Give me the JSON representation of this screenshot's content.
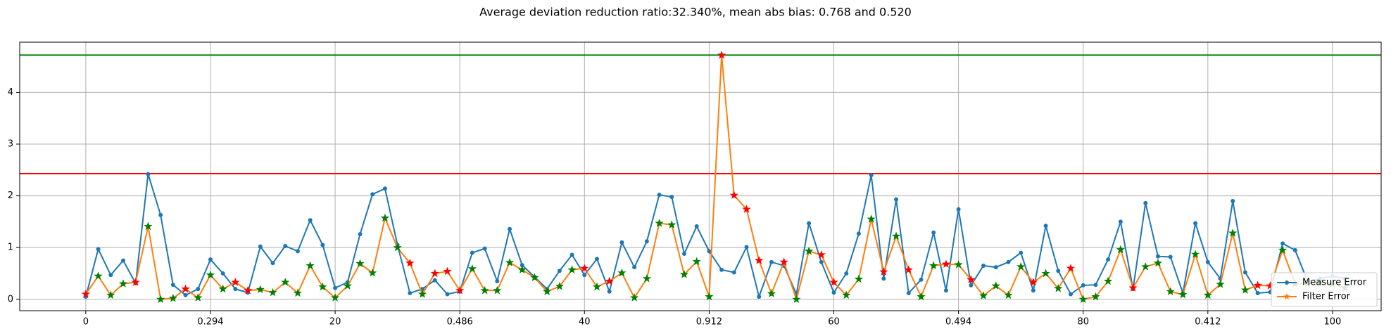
{
  "chart_data": {
    "type": "line",
    "title": "Average deviation reduction ratio:32.340%, mean abs bias: 0.768 and 0.520",
    "x": [
      0,
      1,
      2,
      3,
      4,
      5,
      6,
      7,
      8,
      9,
      10,
      11,
      12,
      13,
      14,
      15,
      16,
      17,
      18,
      19,
      20,
      21,
      22,
      23,
      24,
      25,
      26,
      27,
      28,
      29,
      30,
      31,
      32,
      33,
      34,
      35,
      36,
      37,
      38,
      39,
      40,
      41,
      42,
      43,
      44,
      45,
      46,
      47,
      48,
      49,
      50,
      51,
      52,
      53,
      54,
      55,
      56,
      57,
      58,
      59,
      60,
      61,
      62,
      63,
      64,
      65,
      66,
      67,
      68,
      69,
      70,
      71,
      72,
      73,
      74,
      75,
      76,
      77,
      78,
      79,
      80,
      81,
      82,
      83,
      84,
      85,
      86,
      87,
      88,
      89,
      90,
      91,
      92,
      93,
      94,
      95,
      96,
      97,
      98,
      99,
      100,
      101
    ],
    "series": [
      {
        "name": "Measure Error",
        "color": "#1f77b4",
        "marker": "dot",
        "values": [
          0.05,
          0.97,
          0.47,
          0.75,
          0.31,
          2.42,
          1.63,
          0.28,
          0.08,
          0.2,
          0.77,
          0.5,
          0.2,
          0.13,
          1.02,
          0.7,
          1.03,
          0.93,
          1.53,
          1.05,
          0.22,
          0.33,
          1.26,
          2.03,
          2.14,
          1.05,
          0.12,
          0.2,
          0.37,
          0.1,
          0.15,
          0.9,
          0.98,
          0.35,
          1.36,
          0.66,
          0.43,
          0.2,
          0.55,
          0.86,
          0.47,
          0.78,
          0.15,
          1.1,
          0.62,
          1.12,
          2.02,
          1.98,
          0.88,
          1.41,
          0.93,
          0.57,
          0.52,
          1.01,
          0.05,
          0.72,
          0.65,
          0.1,
          1.47,
          0.72,
          0.13,
          0.5,
          1.27,
          2.4,
          0.4,
          1.93,
          0.12,
          0.38,
          1.29,
          0.17,
          1.74,
          0.27,
          0.65,
          0.62,
          0.72,
          0.9,
          0.17,
          1.42,
          0.55,
          0.1,
          0.27,
          0.28,
          0.77,
          1.5,
          0.2,
          1.86,
          0.83,
          0.82,
          0.12,
          1.47,
          0.72,
          0.4,
          1.9,
          0.52,
          0.12,
          0.14,
          1.08,
          0.95,
          0.35,
          0.4,
          0.45,
          0.4
        ]
      },
      {
        "name": "Filter Error",
        "color": "#ff7f0e",
        "marker": "star",
        "values": [
          0.1,
          0.45,
          0.08,
          0.3,
          0.33,
          1.41,
          0.0,
          0.02,
          0.2,
          0.03,
          0.47,
          0.2,
          0.33,
          0.17,
          0.19,
          0.13,
          0.33,
          0.12,
          0.65,
          0.24,
          0.03,
          0.26,
          0.69,
          0.51,
          1.57,
          1.0,
          0.7,
          0.1,
          0.5,
          0.54,
          0.17,
          0.59,
          0.17,
          0.17,
          0.71,
          0.57,
          0.42,
          0.15,
          0.25,
          0.57,
          0.6,
          0.24,
          0.35,
          0.51,
          0.03,
          0.4,
          1.47,
          1.44,
          0.48,
          0.73,
          0.05,
          4.72,
          2.01,
          1.74,
          0.75,
          0.11,
          0.72,
          0.0,
          0.93,
          0.86,
          0.33,
          0.08,
          0.39,
          1.55,
          0.53,
          1.22,
          0.57,
          0.05,
          0.65,
          0.68,
          0.67,
          0.38,
          0.07,
          0.26,
          0.08,
          0.63,
          0.33,
          0.5,
          0.21,
          0.6,
          0.0,
          0.05,
          0.35,
          0.96,
          0.22,
          0.63,
          0.7,
          0.15,
          0.09,
          0.87,
          0.08,
          0.29,
          1.28,
          0.18,
          0.27,
          0.26,
          0.95,
          0.3,
          0.3,
          0.35,
          0.3,
          0.22
        ]
      }
    ],
    "star_colors": {
      "lower": "#008000",
      "higher": "#ff0000"
    },
    "hlines": [
      {
        "value": 4.72,
        "color": "#008000"
      },
      {
        "value": 2.43,
        "color": "#ff0000"
      }
    ],
    "xlim": [
      -5.3,
      103.9
    ],
    "ylim": [
      -0.22,
      4.97
    ],
    "xticks": [
      0,
      {
        "value": 10,
        "label": "0.294"
      },
      20,
      {
        "value": 30,
        "label": "0.486"
      },
      40,
      {
        "value": 50,
        "label": "0.912"
      },
      60,
      {
        "value": 70,
        "label": "0.494"
      },
      80,
      {
        "value": 90,
        "label": "0.412"
      },
      100
    ],
    "yticks": [
      0,
      1,
      2,
      3,
      4
    ],
    "grid": true,
    "legend": "lower right"
  }
}
